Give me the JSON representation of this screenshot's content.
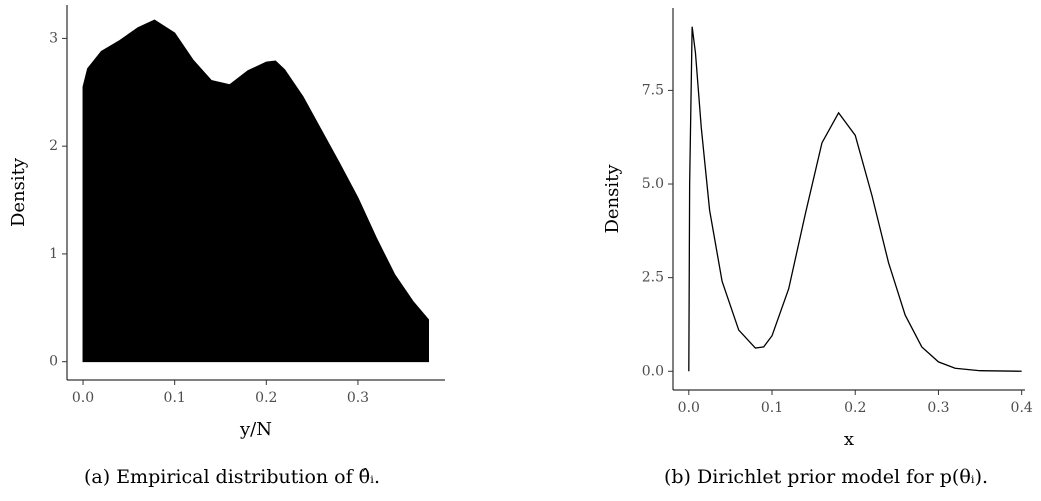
{
  "chart_data": [
    {
      "type": "area",
      "color": "#000000",
      "xlabel": "y/N",
      "ylabel": "Density",
      "caption": "(a) Empirical distribution of θ̂ᵢ.",
      "x": [
        0,
        0.005,
        0.02,
        0.04,
        0.06,
        0.078,
        0.1,
        0.12,
        0.14,
        0.16,
        0.18,
        0.2,
        0.21,
        0.22,
        0.24,
        0.26,
        0.28,
        0.3,
        0.32,
        0.34,
        0.36,
        0.377
      ],
      "values": [
        2.55,
        2.72,
        2.88,
        2.98,
        3.1,
        3.17,
        3.05,
        2.8,
        2.61,
        2.57,
        2.7,
        2.78,
        2.79,
        2.71,
        2.46,
        2.15,
        1.84,
        1.52,
        1.15,
        0.81,
        0.56,
        0.39
      ],
      "xlim": [
        -0.0175,
        0.395
      ],
      "ylim": [
        -0.17,
        3.31
      ],
      "xticks": [
        {
          "value": 0,
          "label": "0.0"
        },
        0.1,
        0.2,
        0.3
      ],
      "yticks": [
        0,
        1,
        2,
        3
      ]
    },
    {
      "type": "line",
      "color": "#000000",
      "xlabel": "x",
      "ylabel": "Density",
      "caption": "(b) Dirichlet prior model for p(θᵢ).",
      "x": [
        0,
        0.001,
        0.004,
        0.008,
        0.015,
        0.025,
        0.04,
        0.06,
        0.08,
        0.09,
        0.1,
        0.12,
        0.14,
        0.16,
        0.18,
        0.2,
        0.22,
        0.24,
        0.26,
        0.28,
        0.3,
        0.32,
        0.35,
        0.4
      ],
      "values": [
        0,
        5,
        9.2,
        8.5,
        6.5,
        4.3,
        2.4,
        1.1,
        0.62,
        0.65,
        0.95,
        2.2,
        4.2,
        6.1,
        6.9,
        6.3,
        4.7,
        2.9,
        1.5,
        0.65,
        0.25,
        0.08,
        0.015,
        0
      ],
      "xlim": [
        -0.019,
        0.404
      ],
      "ylim": [
        -0.5,
        9.7
      ],
      "xticks": [
        {
          "value": 0,
          "label": "0.0"
        },
        0.1,
        0.2,
        0.3,
        0.4
      ],
      "yticks": [
        {
          "value": 0,
          "label": "0.0"
        },
        2.5,
        {
          "value": 5,
          "label": "5.0"
        },
        7.5
      ]
    }
  ]
}
